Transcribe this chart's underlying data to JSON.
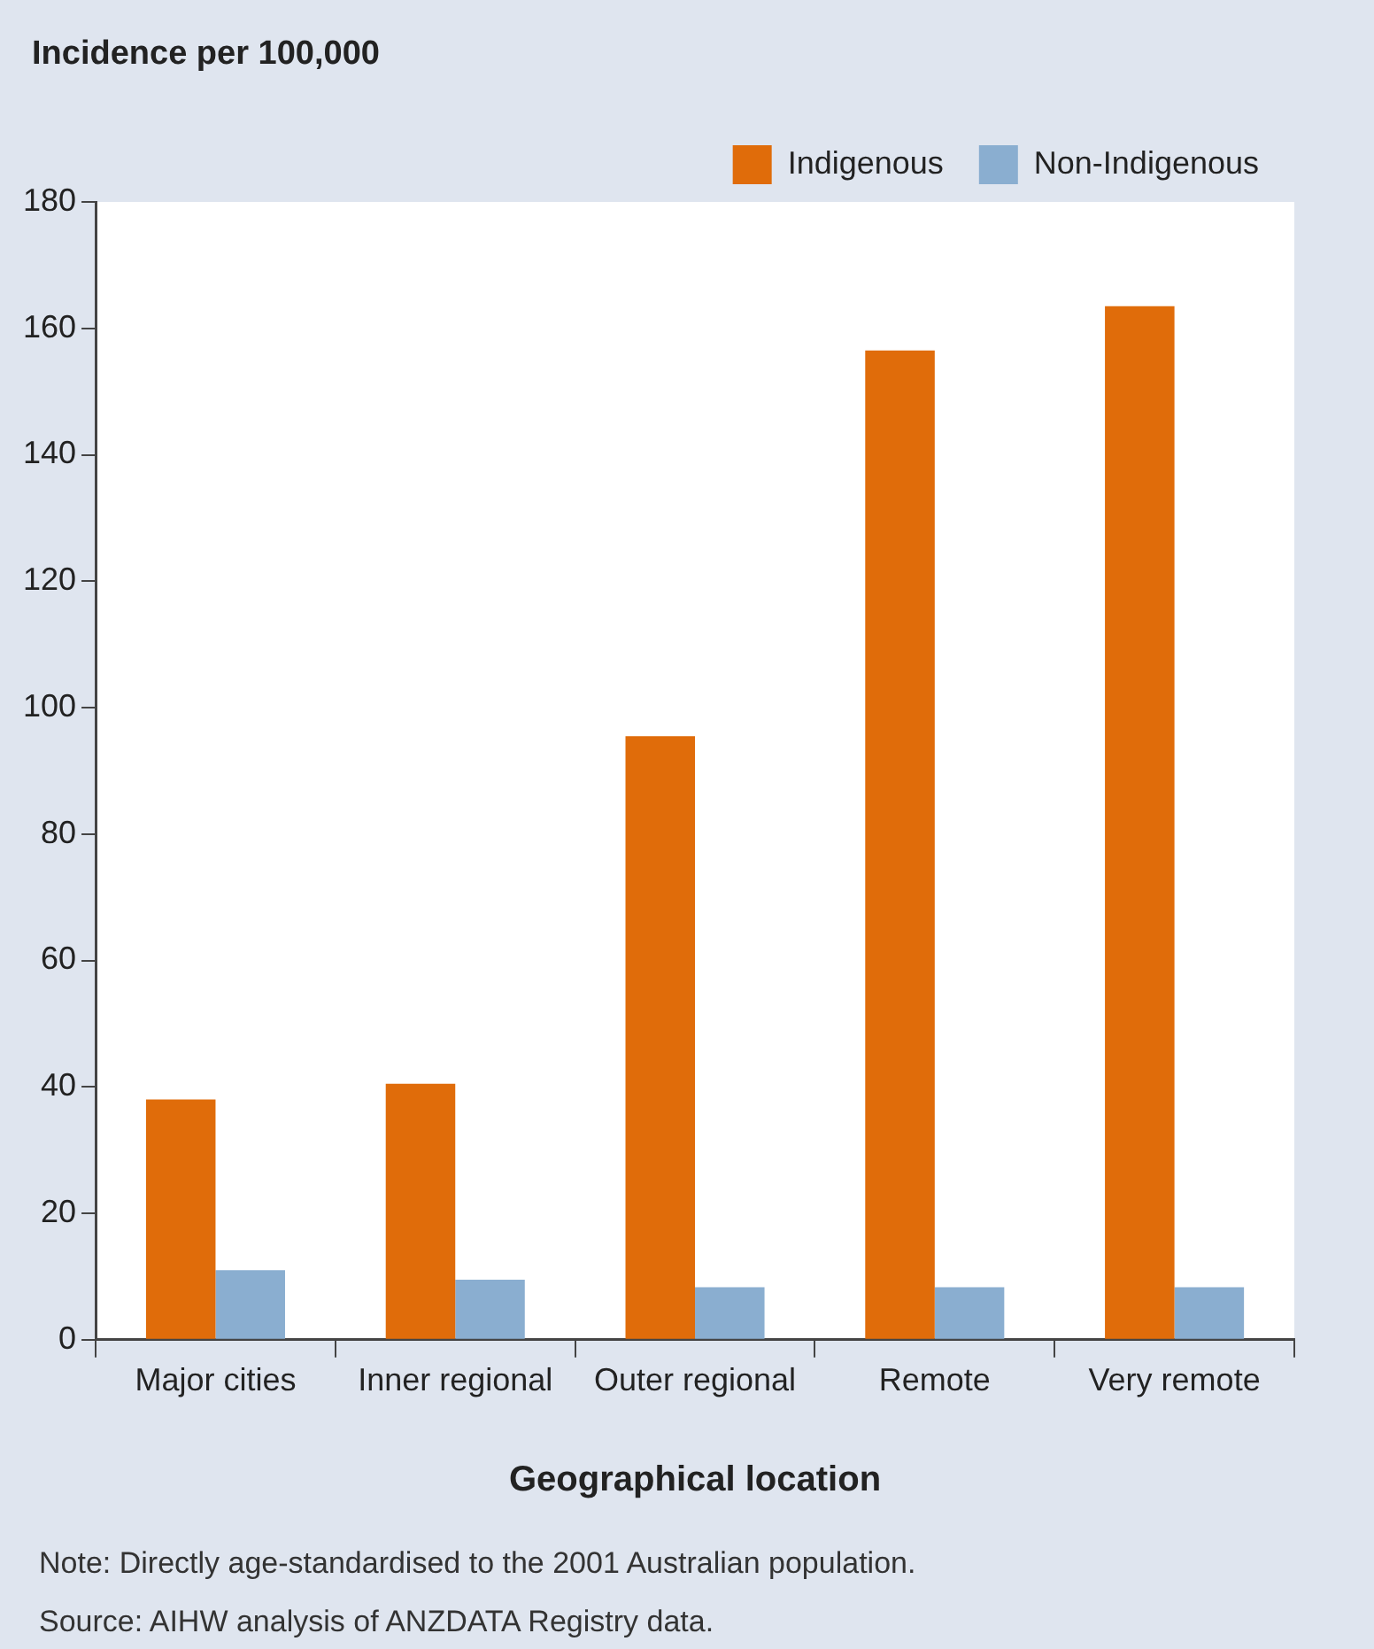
{
  "chart_data": {
    "type": "bar",
    "ylabel": "Incidence per 100,000",
    "xlabel": "Geographical location",
    "categories": [
      "Major cities",
      "Inner regional",
      "Outer regional",
      "Remote",
      "Very remote"
    ],
    "series": [
      {
        "name": "Indigenous",
        "color": "#e06c0a",
        "values": [
          38,
          40.5,
          95.5,
          156.5,
          163.5
        ]
      },
      {
        "name": "Non-Indigenous",
        "color": "#8aaed0",
        "values": [
          11,
          9.5,
          8.3,
          8.3,
          8.3
        ]
      }
    ],
    "ylim": [
      0,
      180
    ],
    "yticks": [
      0,
      20,
      40,
      60,
      80,
      100,
      120,
      140,
      160,
      180
    ],
    "grid": false,
    "legend": "top right",
    "annotations": [
      "Note: Directly age-standardised to the 2001 Australian population.",
      "Source: AIHW analysis of ANZDATA Registry data."
    ]
  }
}
